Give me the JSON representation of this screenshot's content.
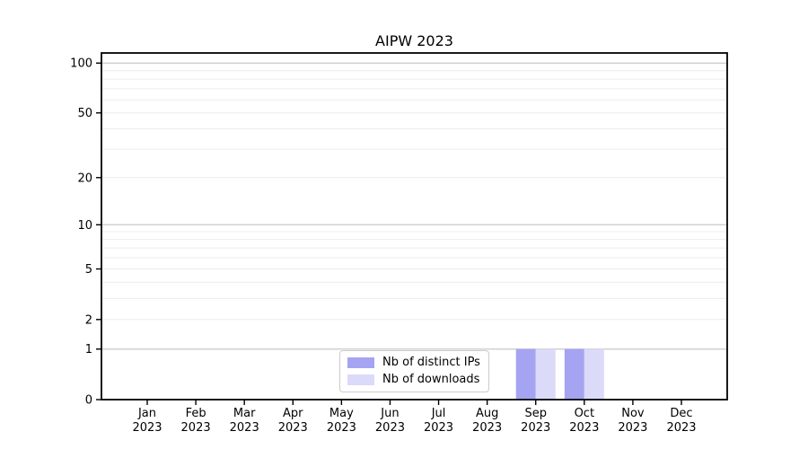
{
  "title": "AIPW 2023",
  "chart_data": {
    "type": "bar",
    "title": "AIPW 2023",
    "xlabel": "",
    "ylabel": "",
    "categories": [
      "Jan 2023",
      "Feb 2023",
      "Mar 2023",
      "Apr 2023",
      "May 2023",
      "Jun 2023",
      "Jul 2023",
      "Aug 2023",
      "Sep 2023",
      "Oct 2023",
      "Nov 2023",
      "Dec 2023"
    ],
    "series": [
      {
        "name": "Nb of distinct IPs",
        "color": "#a5a4f2",
        "values": [
          0,
          0,
          0,
          0,
          0,
          0,
          0,
          0,
          1,
          1,
          0,
          0
        ]
      },
      {
        "name": "Nb of downloads",
        "color": "#dbdaf8",
        "values": [
          0,
          0,
          0,
          0,
          0,
          0,
          0,
          0,
          1,
          1,
          0,
          0
        ]
      }
    ],
    "yscale": "log1p",
    "ylim": [
      0,
      115
    ],
    "yticks": [
      0,
      1,
      2,
      5,
      10,
      20,
      50,
      100
    ],
    "grid_major": [
      1,
      10,
      100
    ],
    "grid_minor": [
      2,
      3,
      4,
      5,
      6,
      7,
      8,
      9,
      20,
      30,
      40,
      50,
      60,
      70,
      80,
      90
    ],
    "grid": "on",
    "legend_position": "lower center"
  },
  "colors": {
    "grid_major": "#c8c8c8",
    "grid_minor": "#ececec",
    "axis": "#000000",
    "background": "#ffffff",
    "legend_border": "#cccccc"
  }
}
